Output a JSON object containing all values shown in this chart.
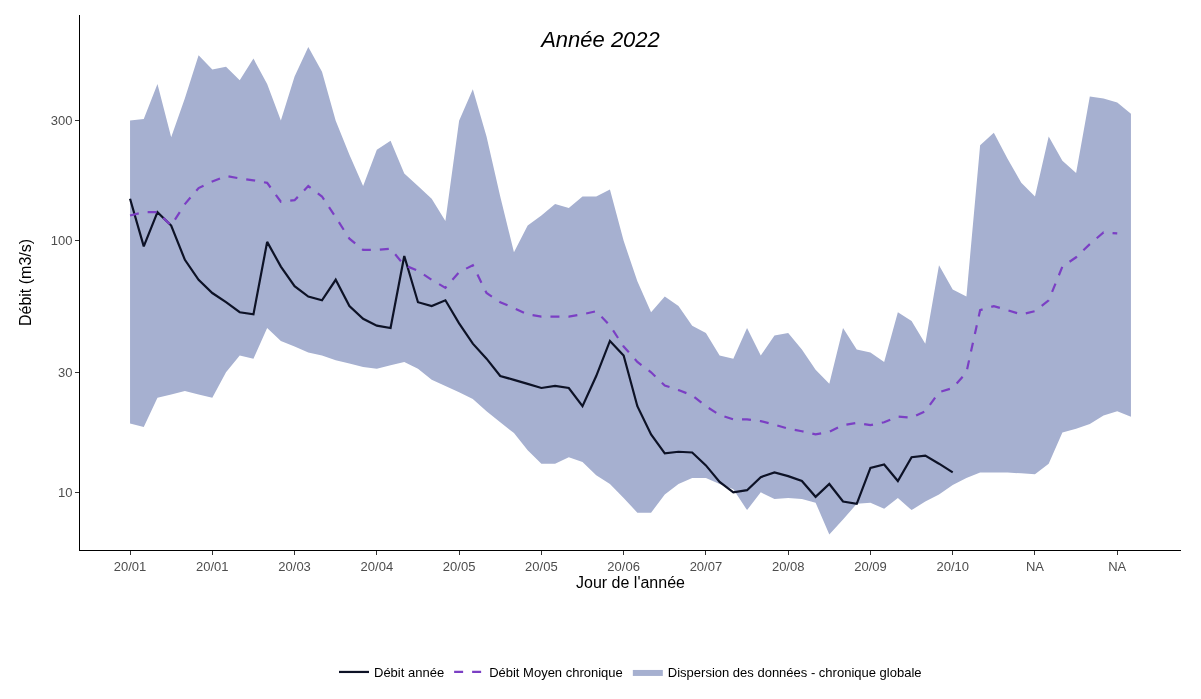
{
  "chart_data": {
    "type": "line",
    "title": "Année 2022",
    "xlabel": "Jour de l'année",
    "ylabel": "Débit (m3/s)",
    "categories": [
      "20/01",
      null,
      null,
      null,
      null,
      null,
      "20/01",
      null,
      null,
      null,
      null,
      null,
      "20/03",
      null,
      null,
      null,
      null,
      null,
      "20/04",
      null,
      null,
      null,
      null,
      null,
      "20/05",
      null,
      null,
      null,
      null,
      null,
      "20/05",
      null,
      null,
      null,
      null,
      null,
      "20/06",
      null,
      null,
      null,
      null,
      null,
      "20/07",
      null,
      null,
      null,
      null,
      null,
      "20/08",
      null,
      null,
      null,
      null,
      null,
      "20/09",
      null,
      null,
      null,
      null,
      null,
      "20/10",
      null,
      null,
      null,
      null,
      null,
      "NA",
      null,
      null,
      null,
      null,
      null,
      "NA",
      null
    ],
    "ylim": [
      5.9,
      790
    ],
    "yticks": [
      10,
      30,
      100,
      300
    ],
    "log": true,
    "legend": "bottom",
    "series": [
      {
        "name": "Débit année",
        "color": "#0d1226",
        "line_style": "solid",
        "values": [
          147,
          95,
          130,
          115,
          84,
          70,
          62,
          57,
          52,
          51,
          99,
          79,
          66,
          60,
          58,
          70,
          55,
          49,
          46,
          45,
          87,
          57,
          55,
          58,
          47,
          39,
          34,
          29,
          28,
          27,
          26,
          26.5,
          26,
          22,
          29,
          40,
          35,
          22,
          17,
          14.3,
          14.5,
          14.4,
          12.8,
          11,
          10,
          10.2,
          11.5,
          12,
          11.6,
          11.1,
          9.6,
          10.8,
          9.2,
          9.0,
          12.5,
          12.9,
          11.1,
          13.8,
          14,
          13,
          12.0,
          null,
          null,
          null,
          null,
          null,
          null,
          null,
          null,
          null,
          null,
          null,
          null,
          null
        ]
      },
      {
        "name": "Débit Moyen chronique",
        "color": "#7b3fc4",
        "line_style": "dashed",
        "values": [
          126,
          130,
          130,
          115,
          140,
          162,
          172,
          181,
          177,
          174,
          170,
          143,
          145,
          165,
          150,
          124,
          102,
          92,
          92,
          93,
          80,
          76,
          70,
          65,
          75,
          80,
          62,
          57,
          54,
          51,
          50,
          50,
          50,
          51,
          52.5,
          46,
          38,
          33,
          30,
          26.6,
          25.5,
          24.3,
          22,
          20.3,
          19.5,
          19.5,
          19.2,
          18.6,
          17.9,
          17.5,
          17,
          17.4,
          18.5,
          18.9,
          18.5,
          19,
          20,
          19.8,
          21,
          25,
          26,
          30,
          53,
          55,
          53,
          51,
          52.5,
          58,
          79,
          86,
          97,
          108,
          107,
          null
        ]
      },
      {
        "name": "Dispersion des données - chronique globale",
        "color": "#a6b0d0",
        "values": [
          null,
          null,
          null,
          null,
          null,
          null,
          null,
          null,
          null,
          null,
          null,
          null,
          null,
          null,
          null,
          null,
          null,
          null,
          null,
          null,
          null,
          null,
          null,
          null,
          null,
          null,
          null,
          null,
          null,
          null,
          null,
          null,
          null,
          null,
          null,
          null,
          null,
          null,
          null,
          null,
          null,
          null,
          null,
          null,
          null,
          null,
          null,
          null,
          null,
          null,
          null,
          null,
          null,
          null,
          null,
          null,
          null,
          null,
          null,
          null,
          null,
          null,
          null,
          null,
          null,
          null,
          null,
          null,
          null,
          null,
          null,
          null,
          null,
          null
        ],
        "upper": [
          301,
          305,
          420,
          258,
          369,
          547,
          480,
          492,
          435,
          530,
          420,
          301,
          450,
          590,
          470,
          300,
          220,
          165,
          230,
          250,
          185,
          165,
          147,
          120,
          300,
          400,
          260,
          150,
          90,
          115,
          126,
          140,
          135,
          150,
          150,
          160,
          100,
          69,
          52,
          60,
          55,
          46,
          43,
          35,
          34,
          45,
          35,
          42,
          43,
          37,
          30.7,
          27,
          45,
          37,
          36,
          33,
          52,
          48,
          39,
          80,
          64,
          60,
          240,
          269,
          212,
          170,
          150,
          260,
          208,
          186,
          375,
          368,
          355,
          320
        ],
        "lower": [
          18.8,
          18.2,
          23.8,
          24.5,
          25.3,
          24.5,
          23.8,
          30,
          35,
          34,
          45,
          40,
          38,
          36,
          35,
          33.5,
          32.5,
          31.5,
          31,
          32,
          33,
          31,
          28,
          26.5,
          25,
          23.5,
          21,
          19,
          17.2,
          14.7,
          13,
          13,
          13.8,
          13.2,
          11.7,
          10.8,
          9.5,
          8.3,
          8.3,
          9.8,
          10.8,
          11.4,
          11.4,
          10.8,
          10.3,
          8.5,
          10,
          9.4,
          9.5,
          9.4,
          9.1,
          6.8,
          7.8,
          9,
          9.1,
          8.6,
          9.5,
          8.5,
          9.2,
          9.8,
          10.7,
          11.4,
          12,
          12,
          12,
          11.9,
          11.8,
          13,
          17.3,
          17.9,
          18.7,
          20.2,
          21,
          20
        ]
      }
    ]
  }
}
